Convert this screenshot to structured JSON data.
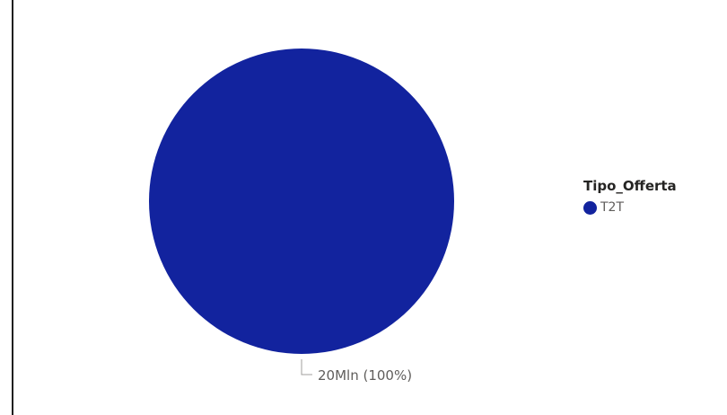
{
  "chart_data": {
    "type": "pie",
    "legend_title": "Tipo_Offerta",
    "legend_position": "right",
    "slices": [
      {
        "label": "T2T",
        "value": 100,
        "color": "#12239e",
        "data_label": "20Mln (100%)"
      }
    ]
  },
  "colors": {
    "leader_line": "#a19f9d",
    "data_label_text": "#605e5c"
  }
}
